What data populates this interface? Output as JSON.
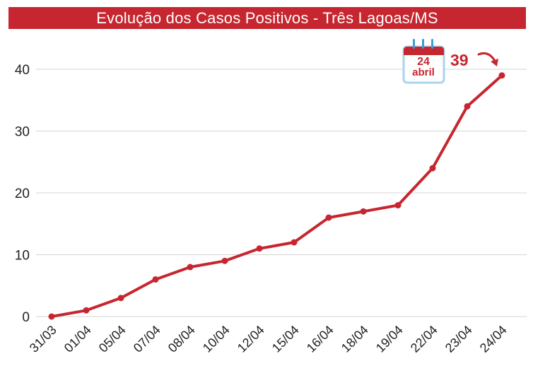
{
  "chart_data": {
    "type": "line",
    "title": "Evolução dos Casos Positivos - Três Lagoas/MS",
    "categories": [
      "31/03",
      "01/04",
      "05/04",
      "07/04",
      "08/04",
      "10/04",
      "12/04",
      "15/04",
      "16/04",
      "18/04",
      "19/04",
      "22/04",
      "23/04",
      "24/04"
    ],
    "values": [
      0,
      1,
      3,
      6,
      8,
      9,
      11,
      12,
      16,
      17,
      18,
      24,
      34,
      39
    ],
    "yticks": [
      0,
      10,
      20,
      30,
      40
    ],
    "ylim": [
      0,
      45
    ],
    "xlabel": "",
    "ylabel": "",
    "grid": true,
    "annotation": {
      "calendar_day": "24",
      "calendar_month": "abril",
      "value_label": "39"
    }
  },
  "colors": {
    "accent": "#c6262f",
    "calendar_body": "#ffffff",
    "calendar_border": "#a9d4ec",
    "calendar_rings": "#3d9bd8",
    "grid": "#d3d3d3"
  }
}
